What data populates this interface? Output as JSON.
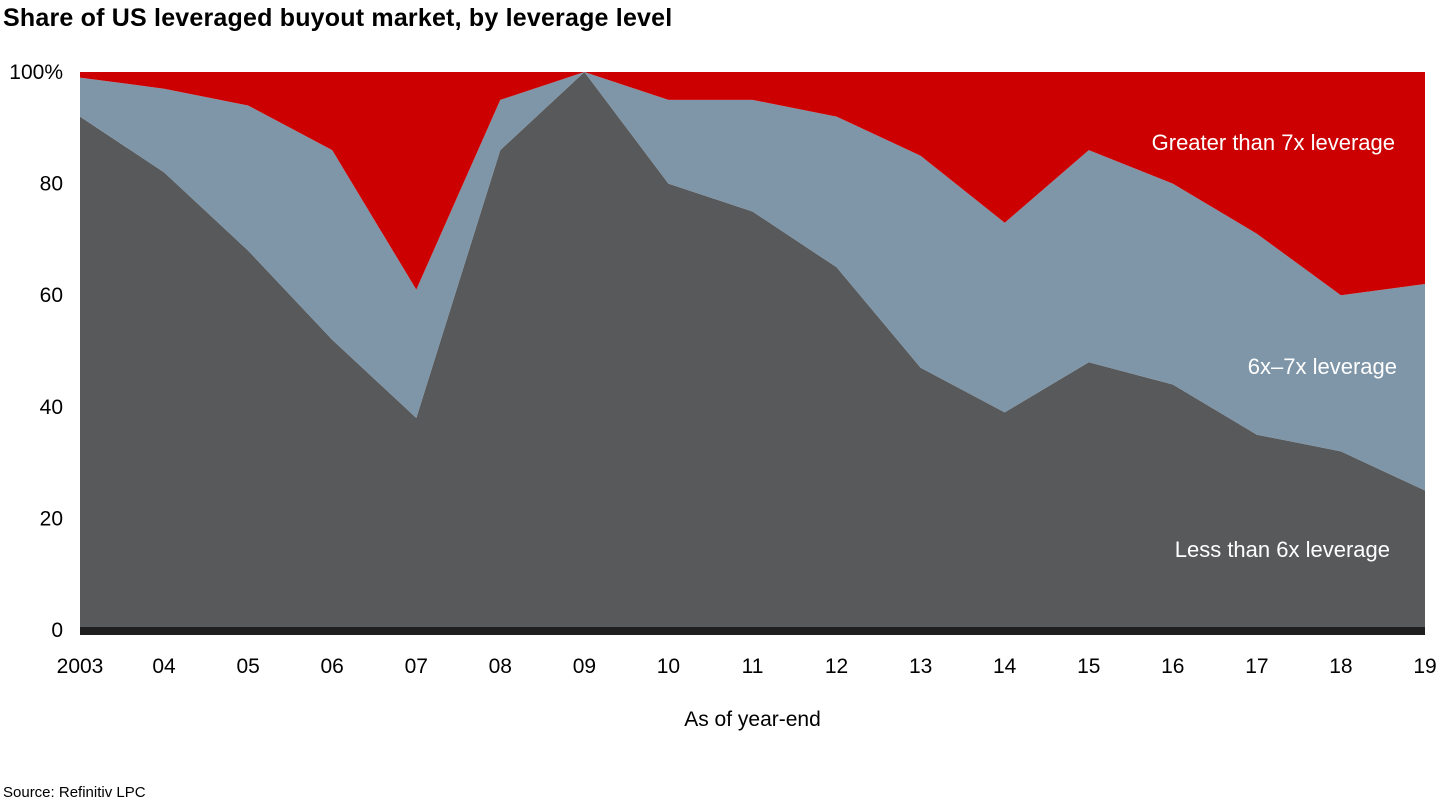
{
  "title": "Share of US leveraged buyout market, by leverage level",
  "source": "Source: Refinitiv LPC",
  "chart_data": {
    "type": "area",
    "stacked": true,
    "title": "Share of US leveraged buyout market, by leverage level",
    "xlabel": "As of year-end",
    "ylabel": "",
    "ylim": [
      0,
      100
    ],
    "grid": false,
    "legend_position": "labels-inside-plot-right",
    "axis_line_color": "#1f1f1f",
    "y_ticks": [
      {
        "value": 100,
        "label": "100%"
      },
      {
        "value": 80,
        "label": "80"
      },
      {
        "value": 60,
        "label": "60"
      },
      {
        "value": 40,
        "label": "40"
      },
      {
        "value": 20,
        "label": "20"
      },
      {
        "value": 0,
        "label": "0"
      }
    ],
    "categories": [
      "2003",
      "04",
      "05",
      "06",
      "07",
      "08",
      "09",
      "10",
      "11",
      "12",
      "13",
      "14",
      "15",
      "16",
      "17",
      "18",
      "19"
    ],
    "series": [
      {
        "id": "less-than-6x",
        "name": "Less than 6x leverage",
        "color": "#58595B",
        "values": [
          92,
          82,
          68,
          52,
          38,
          86,
          100,
          80,
          75,
          65,
          47,
          39,
          48,
          44,
          35,
          32,
          25
        ]
      },
      {
        "id": "6x-7x",
        "name": "6x–7x leverage",
        "color": "#7E96A8",
        "values": [
          7,
          15,
          26,
          34,
          23,
          9,
          0,
          15,
          20,
          27,
          38,
          34,
          38,
          36,
          36,
          28,
          37
        ]
      },
      {
        "id": "greater-than-7x",
        "name": "Greater than 7x leverage",
        "color": "#CC0000",
        "values": [
          1,
          3,
          6,
          14,
          39,
          5,
          0,
          5,
          5,
          8,
          15,
          27,
          14,
          20,
          29,
          40,
          38
        ]
      }
    ]
  }
}
